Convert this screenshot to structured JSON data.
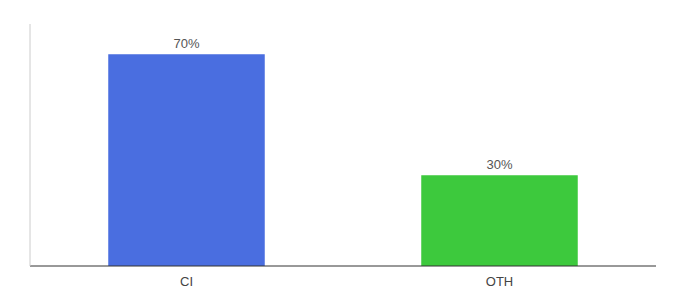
{
  "chart_data": {
    "type": "bar",
    "categories": [
      "CI",
      "OTH"
    ],
    "values": [
      70,
      30
    ],
    "value_labels": [
      "70%",
      "30%"
    ],
    "colors": [
      "#4a6ee0",
      "#3dc93d"
    ],
    "ylim": [
      0,
      80
    ],
    "data_labels": true,
    "tick_labels": "x"
  }
}
